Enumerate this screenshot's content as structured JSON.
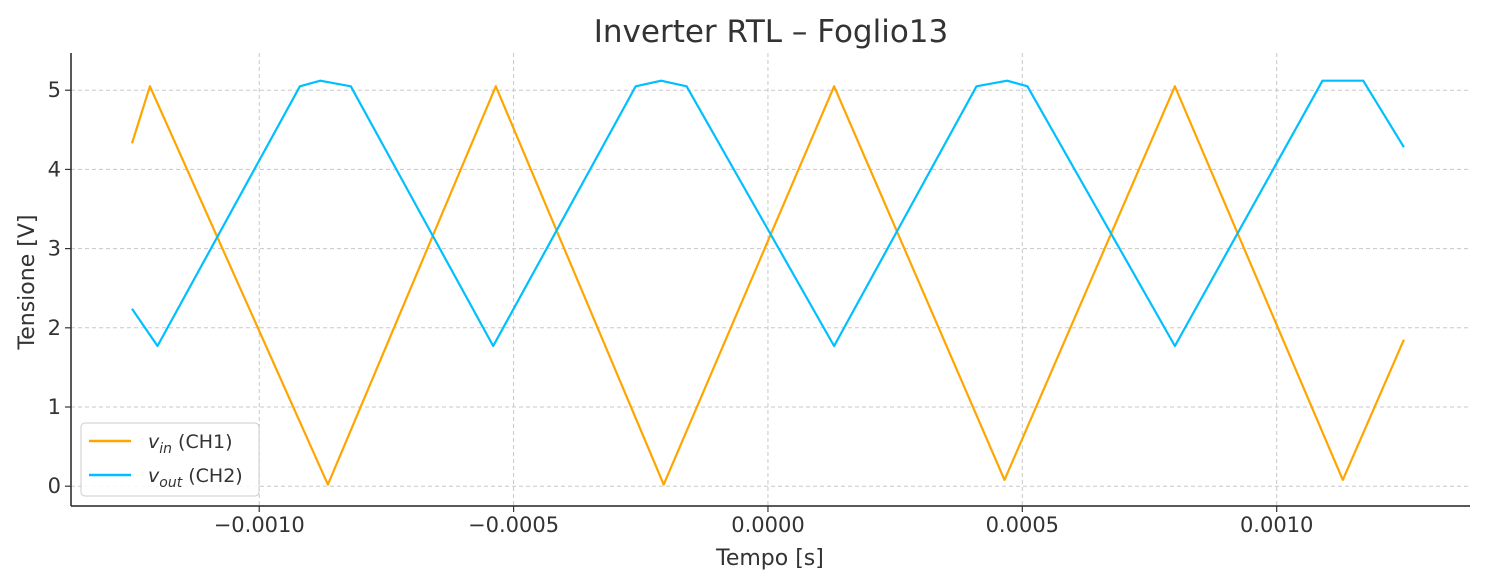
{
  "chart_data": {
    "type": "line",
    "title": "Inverter RTL – Foglio13",
    "xlabel": "Tempo [s]",
    "ylabel": "Tensione [V]",
    "xlim": [
      -0.00137,
      0.00138
    ],
    "ylim": [
      -0.25,
      5.47
    ],
    "grid": true,
    "legend_position": "lower-left",
    "x_ticks": [
      {
        "value": -0.001,
        "label": "−0.0010"
      },
      {
        "value": -0.0005,
        "label": "−0.0005"
      },
      {
        "value": 0.0,
        "label": "0.0000"
      },
      {
        "value": 0.0005,
        "label": "0.0005"
      },
      {
        "value": 0.001,
        "label": "0.0010"
      }
    ],
    "y_ticks": [
      {
        "value": 0,
        "label": "0"
      },
      {
        "value": 1,
        "label": "1"
      },
      {
        "value": 2,
        "label": "2"
      },
      {
        "value": 3,
        "label": "3"
      },
      {
        "value": 4,
        "label": "4"
      },
      {
        "value": 5,
        "label": "5"
      }
    ],
    "series": [
      {
        "name": "v_in (CH1)",
        "legend_main": "v",
        "legend_sub": "in",
        "legend_rest": " (CH1)",
        "color": "#FFA500",
        "points": [
          [
            -0.00125,
            4.33
          ],
          [
            -0.001215,
            5.05
          ],
          [
            -0.000865,
            0.02
          ],
          [
            -0.000535,
            5.05
          ],
          [
            -0.000205,
            0.02
          ],
          [
            0.00013,
            5.05
          ],
          [
            0.000465,
            0.08
          ],
          [
            0.0008,
            5.05
          ],
          [
            0.00113,
            0.08
          ],
          [
            0.00125,
            1.85
          ]
        ]
      },
      {
        "name": "v_out (CH2)",
        "legend_main": "v",
        "legend_sub": "out",
        "legend_rest": " (CH2)",
        "color": "#00BFFF",
        "points": [
          [
            -0.00125,
            2.24
          ],
          [
            -0.0012,
            1.77
          ],
          [
            -0.00092,
            5.05
          ],
          [
            -0.00088,
            5.12
          ],
          [
            -0.00082,
            5.05
          ],
          [
            -0.00054,
            1.77
          ],
          [
            -0.00026,
            5.05
          ],
          [
            -0.00021,
            5.12
          ],
          [
            -0.00016,
            5.05
          ],
          [
            0.00013,
            1.77
          ],
          [
            0.00041,
            5.05
          ],
          [
            0.00047,
            5.12
          ],
          [
            0.00051,
            5.05
          ],
          [
            0.0008,
            1.77
          ],
          [
            0.00109,
            5.12
          ],
          [
            0.00117,
            5.12
          ],
          [
            0.00125,
            4.28
          ]
        ]
      }
    ]
  }
}
